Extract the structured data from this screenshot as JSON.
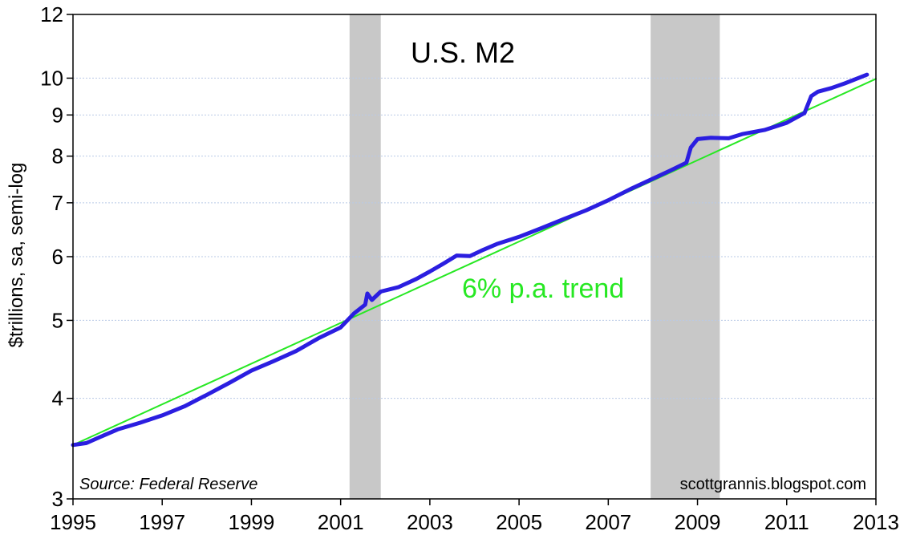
{
  "chart_data": {
    "type": "line",
    "title": "U.S. M2",
    "ylabel": "$trillions, sa, semi-log",
    "xlabel": "",
    "y_scale": "log",
    "xlim": [
      1995,
      2013
    ],
    "ylim": [
      3,
      12
    ],
    "grid": true,
    "x_ticks": [
      "1995",
      "1997",
      "1999",
      "2001",
      "2003",
      "2005",
      "2007",
      "2009",
      "2011",
      "2013"
    ],
    "y_ticks": [
      "3",
      "4",
      "5",
      "6",
      "7",
      "8",
      "9",
      "10",
      "12"
    ],
    "recessions": [
      {
        "start": 2001.2,
        "end": 2001.9
      },
      {
        "start": 2007.95,
        "end": 2009.5
      }
    ],
    "series": [
      {
        "color": "#2b1ee0",
        "x": [
          1995.0,
          1995.3,
          1995.6,
          1996.0,
          1996.5,
          1997.0,
          1997.5,
          1998.0,
          1998.5,
          1999.0,
          1999.5,
          2000.0,
          2000.5,
          2001.0,
          2001.3,
          2001.55,
          2001.6,
          2001.7,
          2001.9,
          2002.3,
          2002.7,
          2003.0,
          2003.3,
          2003.6,
          2003.9,
          2004.2,
          2004.5,
          2005.0,
          2005.5,
          2006.0,
          2006.5,
          2007.0,
          2007.5,
          2008.0,
          2008.4,
          2008.75,
          2008.85,
          2009.0,
          2009.3,
          2009.7,
          2010.0,
          2010.5,
          2011.0,
          2011.4,
          2011.55,
          2011.7,
          2012.0,
          2012.3,
          2012.6,
          2012.8
        ],
        "values": [
          3.5,
          3.52,
          3.58,
          3.66,
          3.73,
          3.81,
          3.91,
          4.04,
          4.18,
          4.33,
          4.45,
          4.58,
          4.75,
          4.9,
          5.1,
          5.23,
          5.4,
          5.3,
          5.43,
          5.5,
          5.63,
          5.75,
          5.88,
          6.02,
          6.01,
          6.12,
          6.22,
          6.35,
          6.51,
          6.68,
          6.85,
          7.05,
          7.28,
          7.5,
          7.68,
          7.85,
          8.2,
          8.4,
          8.43,
          8.42,
          8.52,
          8.62,
          8.8,
          9.05,
          9.5,
          9.62,
          9.72,
          9.85,
          10.0,
          10.1
        ]
      },
      {
        "color": "#27e823",
        "x": [
          1995.0,
          2013.0
        ],
        "values": [
          3.5,
          9.98
        ]
      }
    ],
    "annotations": [
      {
        "text": "6% p.a. trend",
        "color": "#27e823"
      },
      {
        "text": "Source: Federal Reserve"
      },
      {
        "text": "scottgrannis.blogspot.com"
      }
    ]
  }
}
